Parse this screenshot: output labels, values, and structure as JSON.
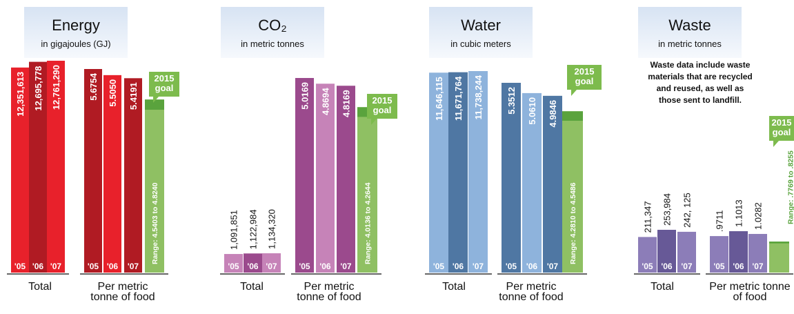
{
  "chart_data": [
    {
      "type": "bar",
      "title": "Energy",
      "subtitle": "in gigajoules (GJ)",
      "note": "",
      "groups": [
        {
          "label": "Total",
          "categories": [
            "'05",
            "'06",
            "'07"
          ],
          "values": [
            12351613,
            12695778,
            12761290
          ],
          "labels": [
            "12,351,613",
            "12,695,778",
            "12,761,290"
          ]
        },
        {
          "label": "Per metric tonne of food",
          "categories": [
            "'05",
            "'06",
            "'07"
          ],
          "values": [
            5.6754,
            5.505,
            5.4191
          ],
          "labels": [
            "5.6754",
            "5.5050",
            "5.4191"
          ]
        }
      ],
      "goal": {
        "label": "2015 goal",
        "range_label": "Range: 4.5403 to 4.8240",
        "low": 4.5403,
        "high": 4.824
      },
      "colors": {
        "total": [
          "#e8212b",
          "#b01b23",
          "#e8212b"
        ],
        "per": [
          "#b01b23",
          "#e8212b",
          "#b01b23"
        ]
      }
    },
    {
      "type": "bar",
      "title": "CO₂",
      "subtitle": "in metric tonnes",
      "note": "",
      "groups": [
        {
          "label": "Total",
          "categories": [
            "'05",
            "'06",
            "'07"
          ],
          "values": [
            1091851,
            1122984,
            1134320
          ],
          "labels": [
            "1,091,851",
            "1,122,984",
            "1,134,320"
          ]
        },
        {
          "label": "Per metric tonne of food",
          "categories": [
            "'05",
            "'06",
            "'07"
          ],
          "values": [
            5.0169,
            4.8694,
            4.8169
          ],
          "labels": [
            "5.0169",
            "4.8694",
            "4.8169"
          ]
        }
      ],
      "goal": {
        "label": "2015 goal",
        "range_label": "Range: 4.0136 to 4.2644",
        "low": 4.0136,
        "high": 4.2644
      },
      "colors": {
        "total": [
          "#c683b8",
          "#9b4a8d",
          "#c683b8"
        ],
        "per": [
          "#9b4a8d",
          "#c683b8",
          "#9b4a8d"
        ]
      }
    },
    {
      "type": "bar",
      "title": "Water",
      "subtitle": "in cubic meters",
      "note": "",
      "groups": [
        {
          "label": "Total",
          "categories": [
            "'05",
            "'06",
            "'07"
          ],
          "values": [
            11646115,
            11671764,
            11738244
          ],
          "labels": [
            "11,646,115",
            "11,671,764",
            "11,738,244"
          ]
        },
        {
          "label": "Per metric tonne of food",
          "categories": [
            "'05",
            "'06",
            "'07"
          ],
          "values": [
            5.3512,
            5.061,
            4.9846
          ],
          "labels": [
            "5.3512",
            "5.0610",
            "4.9846"
          ]
        }
      ],
      "goal": {
        "label": "2015 goal",
        "range_label": "Range: 4.2810 to 4.5486",
        "low": 4.281,
        "high": 4.5486
      },
      "colors": {
        "total": [
          "#8eb3dc",
          "#4f77a3",
          "#8eb3dc"
        ],
        "per": [
          "#4f77a3",
          "#8eb3dc",
          "#4f77a3"
        ]
      }
    },
    {
      "type": "bar",
      "title": "Waste",
      "subtitle": "in metric tonnes",
      "note": "Waste data include waste materials that are recycled and reused, as well as those sent to landfill.",
      "groups": [
        {
          "label": "Total",
          "categories": [
            "'05",
            "'06",
            "'07"
          ],
          "values": [
            211347,
            253984,
            242125
          ],
          "labels": [
            "211,347",
            "253,984",
            "242, 125"
          ]
        },
        {
          "label": "Per metric tonne of food",
          "categories": [
            "'05",
            "'06",
            "'07"
          ],
          "values": [
            0.9711,
            1.1013,
            1.0282
          ],
          "labels": [
            ".9711",
            "1.1013",
            "1.0282"
          ]
        }
      ],
      "goal": {
        "label": "2015 goal",
        "range_label": "Range: .7769 to .8255",
        "low": 0.7769,
        "high": 0.8255
      },
      "colors": {
        "total": [
          "#8c7db8",
          "#675997",
          "#8c7db8"
        ],
        "per": [
          "#8c7db8",
          "#675997",
          "#8c7db8"
        ]
      }
    }
  ]
}
